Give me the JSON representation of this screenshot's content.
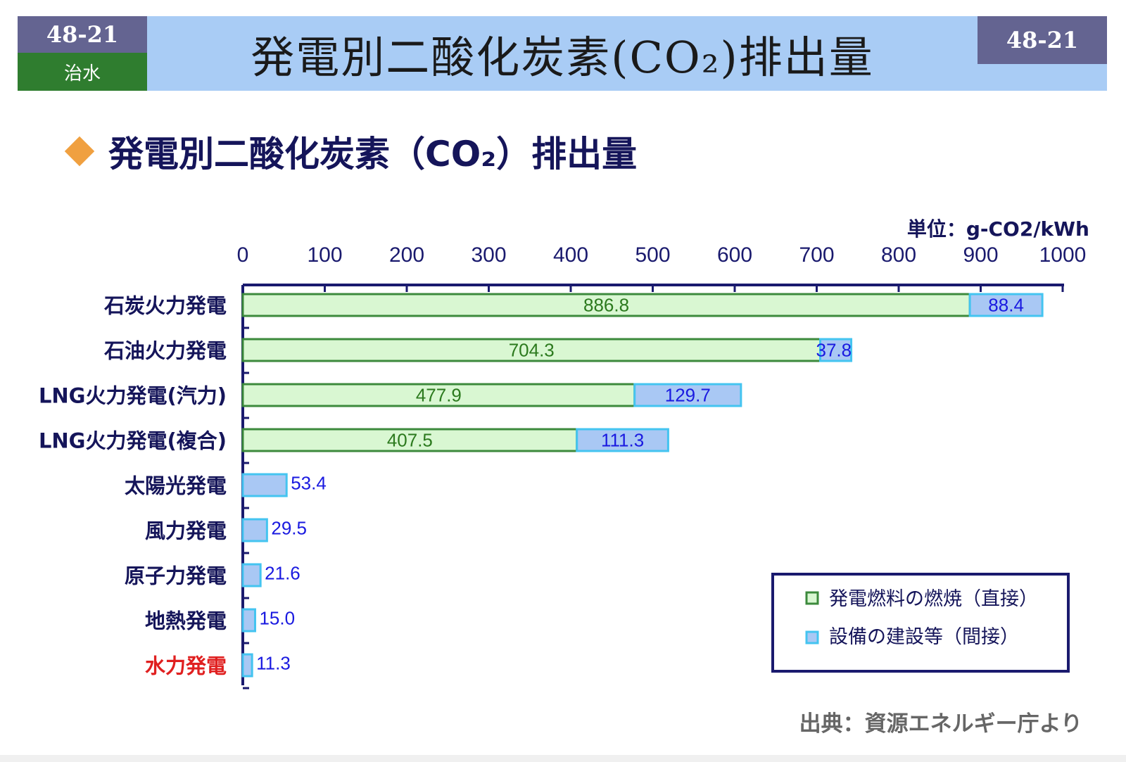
{
  "header": {
    "number_left": "48-21",
    "category": "治水",
    "title": "発電別二酸化炭素(CO₂)排出量",
    "number_right": "48-21"
  },
  "section": {
    "heading": "発電別二酸化炭素（CO₂）排出量"
  },
  "unit_label": "単位：g-CO2/kWh",
  "source": "出典：資源エネルギー庁より",
  "colors": {
    "header_band": "#a9ccf5",
    "badge": "#646491",
    "category_badge": "#2f7d2f",
    "direct_fill": "#d9f7d2",
    "direct_stroke": "#3c8a3c",
    "direct_label": "#2c7a1e",
    "indirect_fill": "#a9c8f4",
    "indirect_stroke": "#44c4f0",
    "indirect_label": "#1a1ae0",
    "axis": "#1a1a6e",
    "category_label": "#15155a",
    "highlight_label": "#e02020"
  },
  "chart_data": {
    "type": "bar",
    "orientation": "horizontal",
    "stacked": true,
    "categories": [
      "石炭火力発電",
      "石油火力発電",
      "LNG火力発電(汽力)",
      "LNG火力発電(複合)",
      "太陽光発電",
      "風力発電",
      "原子力発電",
      "地熱発電",
      "水力発電"
    ],
    "highlight_category": "水力発電",
    "series": [
      {
        "name": "発電燃料の燃焼（直接）",
        "values": [
          886.8,
          704.3,
          477.9,
          407.5,
          0,
          0,
          0,
          0,
          0
        ]
      },
      {
        "name": "設備の建設等（間接）",
        "values": [
          88.4,
          37.8,
          129.7,
          111.3,
          53.4,
          29.5,
          21.6,
          15.0,
          11.3
        ]
      }
    ],
    "value_labels": {
      "direct": [
        "886.8",
        "704.3",
        "477.9",
        "407.5",
        "",
        "",
        "",
        "",
        ""
      ],
      "indirect": [
        "88.4",
        "37.8",
        "129.7",
        "111.3",
        "53.4",
        "29.5",
        "21.6",
        "15.0",
        "11.3"
      ]
    },
    "xlim": [
      0,
      1000
    ],
    "xticks": [
      0,
      100,
      200,
      300,
      400,
      500,
      600,
      700,
      800,
      900,
      1000
    ],
    "axis_position": "top",
    "legend_position": "bottom-right",
    "grid": false
  }
}
